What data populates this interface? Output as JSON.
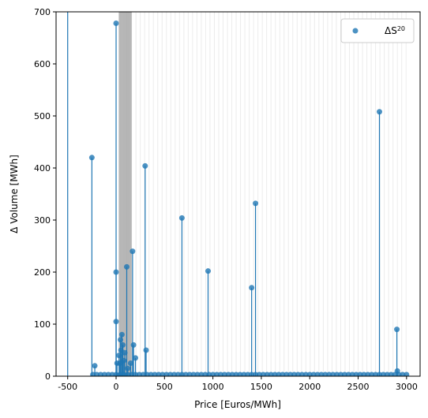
{
  "chart_data": {
    "type": "scatter",
    "title": "",
    "xlabel": "Price [Euros/MWh]",
    "ylabel": "Δ Volume [MWh]",
    "xlim": [
      -620,
      3140
    ],
    "ylim": [
      0,
      700
    ],
    "xticks": [
      -500,
      0,
      500,
      1000,
      1500,
      2000,
      2500,
      3000
    ],
    "yticks": [
      0,
      100,
      200,
      300,
      400,
      500,
      600,
      700
    ],
    "legend": {
      "placement": "top-right",
      "label_main": "ΔS",
      "label_sup": "20"
    },
    "colors": {
      "series": "#1f77b4",
      "vlines": "#808080"
    },
    "series": [
      {
        "name": "ΔS^20",
        "stems": true,
        "x": [
          -500,
          -250,
          -220,
          0,
          0,
          0,
          10,
          30,
          40,
          45,
          50,
          60,
          70,
          80,
          90,
          110,
          120,
          150,
          170,
          180,
          200,
          300,
          310,
          680,
          950,
          1400,
          1440,
          2720,
          2900,
          2905
        ],
        "y": [
          720,
          420,
          20,
          678,
          200,
          105,
          25,
          40,
          25,
          70,
          50,
          80,
          60,
          30,
          45,
          210,
          15,
          25,
          240,
          60,
          35,
          404,
          50,
          304,
          202,
          170,
          332,
          508,
          90,
          10
        ]
      }
    ],
    "baseline_points": {
      "x_start": -240,
      "x_end": 3000,
      "step": 40,
      "y": 3
    },
    "vertical_bands": {
      "dense_range": [
        30,
        160
      ],
      "dense_step": 4,
      "sparse_range": [
        160,
        3000
      ],
      "sparse_step": 45
    }
  }
}
